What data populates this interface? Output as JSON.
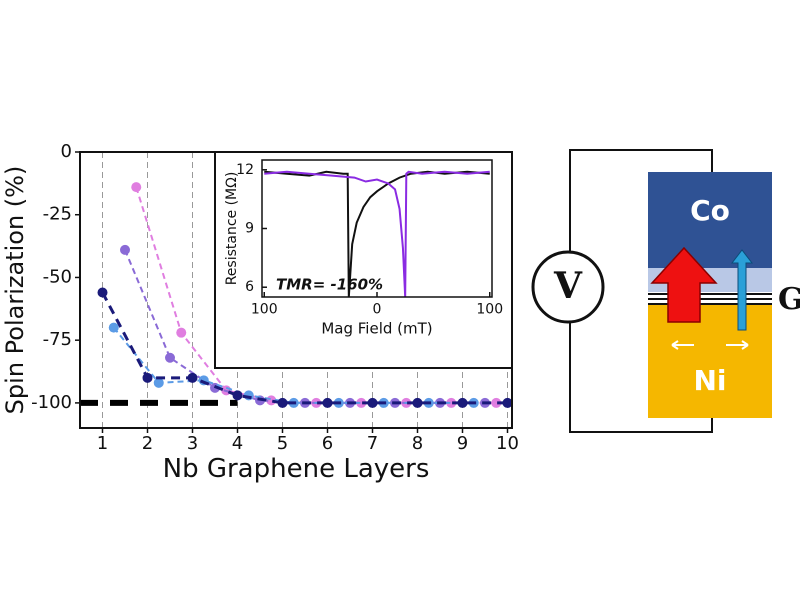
{
  "chart_data": [
    {
      "type": "line",
      "x_label": "Nb Graphene Layers",
      "y_label": "Spin Polarization (%)",
      "xlim": [
        0.5,
        10.1
      ],
      "ylim": [
        -110,
        0
      ],
      "xticks": [
        1,
        2,
        3,
        4,
        5,
        6,
        7,
        8,
        9,
        10
      ],
      "yticks": [
        0,
        -25,
        -50,
        -75,
        -100
      ],
      "grid": "x",
      "series": [
        {
          "color": "#000000",
          "linestyle": "dashed",
          "linewidth": 6,
          "markers": false,
          "x": [
            0.5,
            4
          ],
          "values": [
            -100,
            -100
          ]
        },
        {
          "color": "#e07ee0",
          "linestyle": "dashed",
          "linewidth": 2,
          "markers": true,
          "x": [
            1.75,
            2.75,
            3.75,
            4.75,
            5.75,
            6.75,
            7.75,
            8.75,
            9.75
          ],
          "values": [
            -14,
            -72,
            -95,
            -99,
            -100,
            -100,
            -100,
            -100,
            -100
          ]
        },
        {
          "color": "#8a6ad6",
          "linestyle": "dashed",
          "linewidth": 2,
          "markers": true,
          "x": [
            1.5,
            2.5,
            3.5,
            4.5,
            5.5,
            6.5,
            7.5,
            8.5,
            9.5
          ],
          "values": [
            -39,
            -82,
            -94,
            -99,
            -100,
            -100,
            -100,
            -100,
            -100
          ]
        },
        {
          "color": "#5b9be6",
          "linestyle": "dashed",
          "linewidth": 2,
          "markers": true,
          "x": [
            1.25,
            2.25,
            3.25,
            4.25,
            5.25,
            6.25,
            7.25,
            8.25,
            9.25
          ],
          "values": [
            -70,
            -92,
            -91,
            -97,
            -100,
            -100,
            -100,
            -100,
            -100
          ]
        },
        {
          "color": "#1a1a7a",
          "linestyle": "dashed",
          "linewidth": 3,
          "markers": true,
          "x": [
            1,
            2,
            3,
            4,
            5,
            6,
            7,
            8,
            9,
            10
          ],
          "values": [
            -56,
            -90,
            -90,
            -97,
            -100,
            -100,
            -100,
            -100,
            -100,
            -100
          ]
        }
      ]
    },
    {
      "type": "line",
      "x_label": "Mag Field (mT)",
      "y_label": "Resistance (MΩ)",
      "annotation": "TMR= -160%",
      "xlim": [
        -102,
        102
      ],
      "ylim": [
        5.5,
        12.5
      ],
      "xticks": [
        {
          "value": -100,
          "label": "100"
        },
        0,
        100
      ],
      "yticks": [
        6,
        9,
        12
      ],
      "grid": "none",
      "series": [
        {
          "color": "#111111",
          "linestyle": "solid",
          "linewidth": 2,
          "markers": false,
          "x": [
            -100,
            -80,
            -60,
            -45,
            -30,
            -26,
            -25,
            -22,
            -18,
            -12,
            -6,
            0,
            10,
            20,
            30,
            45,
            60,
            80,
            100
          ],
          "values": [
            11.9,
            11.8,
            11.7,
            11.9,
            11.8,
            11.8,
            5.5,
            8.2,
            9.3,
            10.1,
            10.6,
            10.9,
            11.3,
            11.6,
            11.8,
            11.9,
            11.8,
            11.9,
            11.8
          ]
        },
        {
          "color": "#8a2be2",
          "linestyle": "solid",
          "linewidth": 2,
          "markers": false,
          "x": [
            -100,
            -80,
            -60,
            -40,
            -20,
            -10,
            0,
            10,
            16,
            20,
            23,
            25,
            26,
            28,
            40,
            60,
            80,
            100
          ],
          "values": [
            11.8,
            11.9,
            11.8,
            11.7,
            11.6,
            11.4,
            11.5,
            11.3,
            11.0,
            10.0,
            8.0,
            5.5,
            11.8,
            11.9,
            11.8,
            11.9,
            11.8,
            11.9
          ]
        }
      ]
    }
  ],
  "diagram": {
    "voltmeter": "V",
    "top_layer": "Co",
    "bottom_layer": "Ni",
    "side_label": "G"
  }
}
